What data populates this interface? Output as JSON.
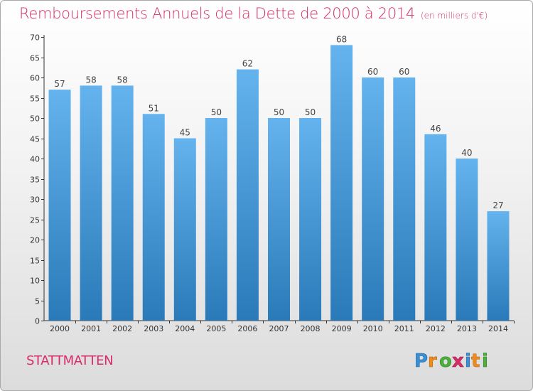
{
  "title": "Remboursements Annuels de la Dette de 2000 à 2014",
  "subtitle": "(en milliers d'€)",
  "commune": "STATTMATTEN",
  "logo": "Proxiti",
  "colors": {
    "accent": "#d62c6a",
    "bar_top": "#64b3ee",
    "bar_bottom": "#2a7ab9",
    "axis": "#333333"
  },
  "chart_data": {
    "type": "bar",
    "title": "Remboursements Annuels de la Dette de 2000 à 2014",
    "subtitle": "(en milliers d'€)",
    "categories": [
      "2000",
      "2001",
      "2002",
      "2003",
      "2004",
      "2005",
      "2006",
      "2007",
      "2008",
      "2009",
      "2010",
      "2011",
      "2012",
      "2013",
      "2014"
    ],
    "values": [
      57,
      58,
      58,
      51,
      45,
      50,
      62,
      50,
      50,
      68,
      60,
      60,
      46,
      40,
      27
    ],
    "ylim": [
      0,
      70
    ],
    "yticks": [
      0,
      5,
      10,
      15,
      20,
      25,
      30,
      35,
      40,
      45,
      50,
      55,
      60,
      65,
      70
    ],
    "grid": false,
    "data_labels": true
  }
}
